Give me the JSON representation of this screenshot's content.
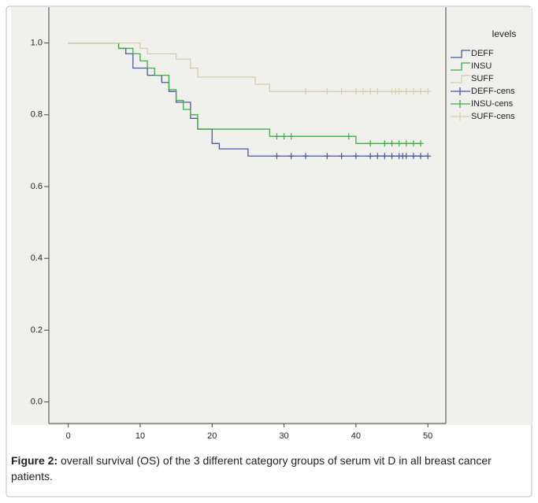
{
  "chart_data": {
    "type": "survival",
    "caption_label": "Figure 2:",
    "caption": "overall survival (OS) of the 3 different category groups of serum vit D in all breast cancer patients.",
    "legend_title": "levels",
    "xlim": [
      -2.7,
      52.5
    ],
    "xticks": [
      0,
      10,
      20,
      30,
      40,
      50
    ],
    "ylim": [
      -0.06,
      1.1
    ],
    "yticks": [
      {
        "value": 0,
        "label": "0.0"
      },
      0.2,
      0.4,
      0.6,
      0.8,
      {
        "value": 1,
        "label": "1.0"
      }
    ],
    "series": [
      {
        "name": "DEFF",
        "color": "#4a56a6",
        "kind": "step",
        "x": [
          0,
          7,
          8,
          9,
          11,
          13,
          14,
          15,
          17,
          18,
          20,
          21,
          25,
          50
        ],
        "values": [
          1.0,
          0.985,
          0.97,
          0.93,
          0.91,
          0.89,
          0.865,
          0.835,
          0.79,
          0.76,
          0.72,
          0.705,
          0.685,
          0.685
        ]
      },
      {
        "name": "INSU",
        "color": "#3cae45",
        "kind": "step",
        "x": [
          0,
          7,
          9,
          10,
          11,
          12,
          14,
          15,
          16,
          17,
          18,
          28,
          40,
          49
        ],
        "values": [
          1.0,
          0.985,
          0.97,
          0.95,
          0.93,
          0.91,
          0.87,
          0.84,
          0.815,
          0.8,
          0.76,
          0.74,
          0.72,
          0.72
        ]
      },
      {
        "name": "SUFF",
        "color": "#d8cea4",
        "kind": "step",
        "x": [
          0,
          10,
          11,
          15,
          17,
          18,
          26,
          28,
          50
        ],
        "values": [
          1.0,
          0.985,
          0.97,
          0.955,
          0.93,
          0.905,
          0.885,
          0.865,
          0.865
        ]
      },
      {
        "name": "DEFF-cens",
        "color": "#4a56a6",
        "kind": "censor",
        "x": [
          29,
          31,
          33,
          36,
          38,
          40,
          42,
          43,
          44,
          45,
          46,
          46.5,
          47,
          48,
          49,
          50
        ],
        "values": [
          0.685,
          0.685,
          0.685,
          0.685,
          0.685,
          0.685,
          0.685,
          0.685,
          0.685,
          0.685,
          0.685,
          0.685,
          0.685,
          0.685,
          0.685,
          0.685
        ]
      },
      {
        "name": "INSU-cens",
        "color": "#3cae45",
        "kind": "censor",
        "x": [
          29,
          30,
          31,
          39,
          42,
          44,
          45,
          46,
          47,
          48,
          49
        ],
        "values": [
          0.74,
          0.74,
          0.74,
          0.74,
          0.72,
          0.72,
          0.72,
          0.72,
          0.72,
          0.72,
          0.72
        ]
      },
      {
        "name": "SUFF-cens",
        "color": "#d8cea4",
        "kind": "censor",
        "x": [
          33,
          36,
          38,
          40,
          41,
          42,
          43,
          45,
          45.5,
          46,
          47,
          48,
          49,
          50
        ],
        "values": [
          0.865,
          0.865,
          0.865,
          0.865,
          0.865,
          0.865,
          0.865,
          0.865,
          0.865,
          0.865,
          0.865,
          0.865,
          0.865,
          0.865
        ]
      }
    ]
  }
}
